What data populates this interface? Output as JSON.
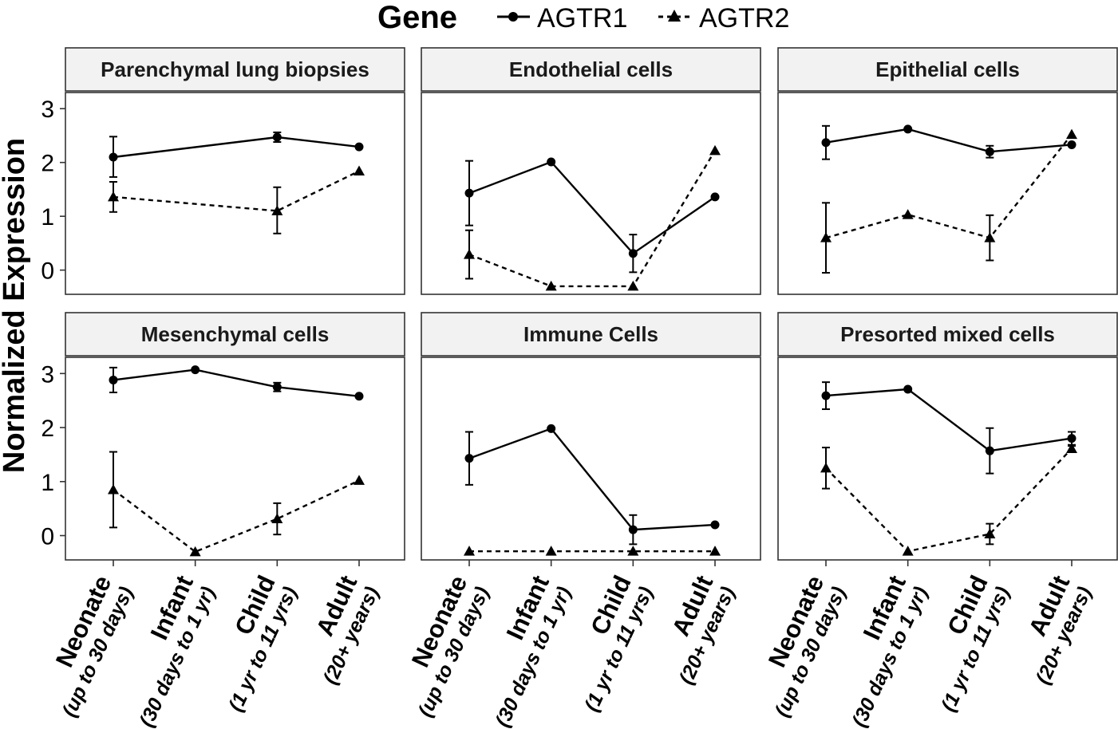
{
  "legend": {
    "title": "Gene",
    "entries": [
      "AGTR1",
      "AGTR2"
    ]
  },
  "y_axis_label": "Normalized Expression",
  "chart_data": {
    "type": "line",
    "facet_layout": "2x3",
    "ylim": [
      -0.45,
      3.3
    ],
    "yticks": [
      0,
      1,
      2,
      3
    ],
    "categories": [
      {
        "main": "Neonate",
        "sub": "(up to 30 days)"
      },
      {
        "main": "Infant",
        "sub": "(30 days to 1 yr)"
      },
      {
        "main": "Child",
        "sub": "(1 yr to 11 yrs)"
      },
      {
        "main": "Adult",
        "sub": "(20+ years)"
      }
    ],
    "series_styles": [
      {
        "name": "AGTR1",
        "line": "solid",
        "marker": "circle"
      },
      {
        "name": "AGTR2",
        "line": "dashed",
        "marker": "triangle"
      }
    ],
    "panels": [
      {
        "title": "Parenchymal lung biopsies",
        "series": [
          {
            "name": "AGTR1",
            "values": [
              2.1,
              null,
              2.47,
              2.29
            ],
            "err_low": [
              1.73,
              null,
              2.38,
              2.29
            ],
            "err_high": [
              2.48,
              null,
              2.56,
              2.29
            ]
          },
          {
            "name": "AGTR2",
            "values": [
              1.36,
              null,
              1.1,
              1.84
            ],
            "err_low": [
              1.08,
              null,
              0.68,
              1.84
            ],
            "err_high": [
              1.64,
              null,
              1.54,
              1.84
            ]
          }
        ]
      },
      {
        "title": "Endothelial cells",
        "series": [
          {
            "name": "AGTR1",
            "values": [
              1.43,
              2.01,
              0.31,
              1.36
            ],
            "err_low": [
              0.83,
              2.01,
              -0.04,
              1.36
            ],
            "err_high": [
              2.03,
              2.01,
              0.66,
              1.36
            ]
          },
          {
            "name": "AGTR2",
            "values": [
              0.29,
              -0.3,
              -0.3,
              2.22
            ],
            "err_low": [
              -0.16,
              -0.3,
              -0.3,
              2.22
            ],
            "err_high": [
              0.74,
              -0.3,
              -0.3,
              2.22
            ]
          }
        ]
      },
      {
        "title": "Epithelial cells",
        "series": [
          {
            "name": "AGTR1",
            "values": [
              2.37,
              2.62,
              2.2,
              2.33
            ],
            "err_low": [
              2.06,
              2.62,
              2.09,
              2.33
            ],
            "err_high": [
              2.68,
              2.62,
              2.31,
              2.33
            ]
          },
          {
            "name": "AGTR2",
            "values": [
              0.6,
              1.03,
              0.6,
              2.52
            ],
            "err_low": [
              -0.05,
              1.03,
              0.18,
              2.52
            ],
            "err_high": [
              1.25,
              1.03,
              1.02,
              2.52
            ]
          }
        ]
      },
      {
        "title": "Mesenchymal cells",
        "series": [
          {
            "name": "AGTR1",
            "values": [
              2.88,
              3.07,
              2.75,
              2.58
            ],
            "err_low": [
              2.65,
              3.07,
              2.67,
              2.58
            ],
            "err_high": [
              3.11,
              3.07,
              2.83,
              2.58
            ]
          },
          {
            "name": "AGTR2",
            "values": [
              0.85,
              -0.3,
              0.31,
              1.02
            ],
            "err_low": [
              0.15,
              -0.3,
              0.02,
              1.02
            ],
            "err_high": [
              1.55,
              -0.3,
              0.6,
              1.02
            ]
          }
        ]
      },
      {
        "title": "Immune Cells",
        "series": [
          {
            "name": "AGTR1",
            "values": [
              1.43,
              1.98,
              0.11,
              0.2
            ],
            "err_low": [
              0.94,
              1.98,
              -0.16,
              0.2
            ],
            "err_high": [
              1.92,
              1.98,
              0.38,
              0.2
            ]
          },
          {
            "name": "AGTR2",
            "values": [
              -0.29,
              -0.29,
              -0.29,
              -0.29
            ],
            "err_low": [
              -0.29,
              -0.29,
              -0.29,
              -0.29
            ],
            "err_high": [
              -0.29,
              -0.29,
              -0.29,
              -0.29
            ]
          }
        ]
      },
      {
        "title": "Presorted mixed cells",
        "series": [
          {
            "name": "AGTR1",
            "values": [
              2.59,
              2.71,
              1.57,
              1.8
            ],
            "err_low": [
              2.34,
              2.69,
              1.15,
              1.68
            ],
            "err_high": [
              2.84,
              2.73,
              1.99,
              1.92
            ]
          },
          {
            "name": "AGTR2",
            "values": [
              1.25,
              -0.29,
              0.03,
              1.61
            ],
            "err_low": [
              0.87,
              -0.29,
              -0.16,
              1.56
            ],
            "err_high": [
              1.63,
              -0.29,
              0.22,
              1.66
            ]
          }
        ]
      }
    ]
  }
}
